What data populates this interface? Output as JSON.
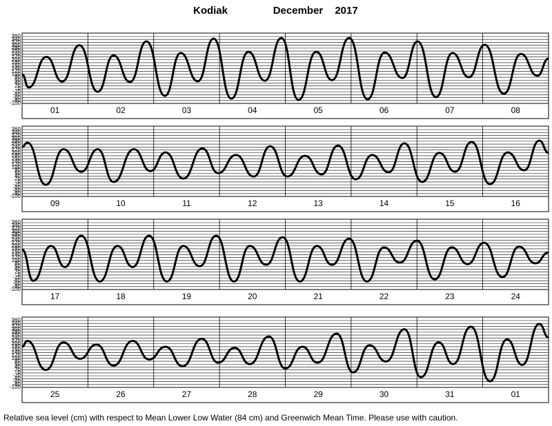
{
  "header": {
    "station": "Kodiak",
    "month": "December",
    "year": "2017"
  },
  "footer": "Relative sea level (cm) with respect to Mean Lower Low Water (84 cm) and Greenwich Mean Time. Please use with caution.",
  "chart_data": [
    {
      "type": "line",
      "color": "#000000",
      "grid": true,
      "categories": [
        "01",
        "02",
        "03",
        "04",
        "05",
        "06",
        "07",
        "08"
      ],
      "x": [
        0,
        0.1,
        0.37,
        0.61,
        0.87,
        1.15,
        1.39,
        1.64,
        1.89,
        2.17,
        2.41,
        2.67,
        2.91,
        3.18,
        3.44,
        3.69,
        3.94,
        4.2,
        4.47,
        4.71,
        4.97,
        5.25,
        5.51,
        5.78,
        6.01,
        6.29,
        6.54,
        6.79,
        7.03,
        7.32,
        7.58,
        7.83,
        8.0
      ],
      "values": [
        100,
        10,
        220,
        50,
        300,
        -20,
        230,
        47,
        326,
        -48,
        246,
        52,
        345,
        -67,
        255,
        56,
        350,
        -76,
        255,
        60,
        350,
        -72,
        250,
        75,
        326,
        -57,
        246,
        80,
        303,
        -34,
        240,
        90,
        208
      ],
      "xlim": [
        0,
        8
      ],
      "ylim": [
        -100,
        360
      ],
      "yticks": [
        360,
        340,
        320,
        300,
        280,
        260,
        240,
        220,
        200,
        180,
        160,
        140,
        120,
        100,
        80,
        60,
        40,
        20,
        0,
        -20,
        -40,
        -60,
        -80,
        -100
      ]
    },
    {
      "type": "line",
      "color": "#000000",
      "grid": true,
      "categories": [
        "09",
        "10",
        "11",
        "12",
        "13",
        "14",
        "15",
        "16"
      ],
      "x": [
        0,
        0.08,
        0.36,
        0.63,
        0.9,
        1.15,
        1.39,
        1.7,
        1.95,
        2.18,
        2.45,
        2.74,
        2.98,
        3.25,
        3.52,
        3.77,
        4.03,
        4.3,
        4.55,
        4.8,
        5.07,
        5.32,
        5.57,
        5.81,
        6.08,
        6.34,
        6.58,
        6.83,
        7.11,
        7.38,
        7.63,
        7.86,
        8.0
      ],
      "values": [
        240,
        270,
        -20,
        225,
        70,
        225,
        0,
        225,
        75,
        203,
        23,
        230,
        60,
        185,
        37,
        245,
        37,
        180,
        52,
        250,
        18,
        185,
        66,
        265,
        0,
        200,
        70,
        275,
        -15,
        203,
        80,
        284,
        200
      ],
      "xlim": [
        0,
        8
      ],
      "ylim": [
        -100,
        360
      ],
      "yticks": [
        360,
        340,
        320,
        300,
        280,
        260,
        240,
        220,
        200,
        180,
        160,
        140,
        120,
        100,
        80,
        60,
        40,
        20,
        0,
        -20,
        -40,
        -60,
        -80,
        -100
      ]
    },
    {
      "type": "line",
      "color": "#000000",
      "grid": true,
      "categories": [
        "17",
        "18",
        "19",
        "20",
        "21",
        "22",
        "23",
        "24"
      ],
      "x": [
        0,
        0.17,
        0.44,
        0.65,
        0.9,
        1.18,
        1.45,
        1.68,
        1.93,
        2.2,
        2.45,
        2.7,
        2.95,
        3.22,
        3.46,
        3.71,
        3.96,
        4.22,
        4.48,
        4.71,
        4.97,
        5.24,
        5.5,
        5.74,
        6.0,
        6.27,
        6.53,
        6.77,
        7.02,
        7.3,
        7.55,
        7.8,
        8.0
      ],
      "values": [
        175,
        -40,
        200,
        55,
        270,
        -45,
        200,
        55,
        270,
        -45,
        200,
        60,
        270,
        -45,
        200,
        70,
        260,
        -45,
        200,
        70,
        250,
        -45,
        190,
        85,
        236,
        -30,
        190,
        75,
        222,
        -15,
        195,
        80,
        155
      ],
      "xlim": [
        0,
        8
      ],
      "ylim": [
        -100,
        360
      ],
      "yticks": [
        360,
        340,
        320,
        300,
        280,
        260,
        240,
        220,
        200,
        180,
        160,
        140,
        120,
        100,
        80,
        60,
        40,
        20,
        0,
        -20,
        -40,
        -60,
        -80,
        -100
      ]
    },
    {
      "type": "line",
      "color": "#000000",
      "grid": true,
      "categories": [
        "25",
        "26",
        "27",
        "28",
        "29",
        "30",
        "31",
        "01"
      ],
      "x": [
        0,
        0.08,
        0.36,
        0.63,
        0.88,
        1.13,
        1.39,
        1.68,
        1.93,
        2.18,
        2.44,
        2.73,
        2.98,
        3.23,
        3.46,
        3.75,
        4.0,
        4.26,
        4.49,
        4.78,
        5.03,
        5.28,
        5.53,
        5.81,
        6.06,
        6.33,
        6.55,
        6.82,
        7.11,
        7.37,
        7.6,
        7.86,
        8.0
      ],
      "values": [
        180,
        220,
        20,
        210,
        97,
        195,
        50,
        220,
        92,
        180,
        45,
        235,
        70,
        172,
        60,
        250,
        30,
        180,
        70,
        270,
        3,
        190,
        78,
        300,
        -30,
        210,
        60,
        318,
        -58,
        230,
        55,
        337,
        243
      ],
      "xlim": [
        0,
        8
      ],
      "ylim": [
        -100,
        360
      ],
      "yticks": [
        360,
        340,
        320,
        300,
        280,
        260,
        240,
        220,
        200,
        180,
        160,
        140,
        120,
        100,
        80,
        60,
        40,
        20,
        0,
        -20,
        -40,
        -60,
        -80,
        -100
      ]
    }
  ]
}
